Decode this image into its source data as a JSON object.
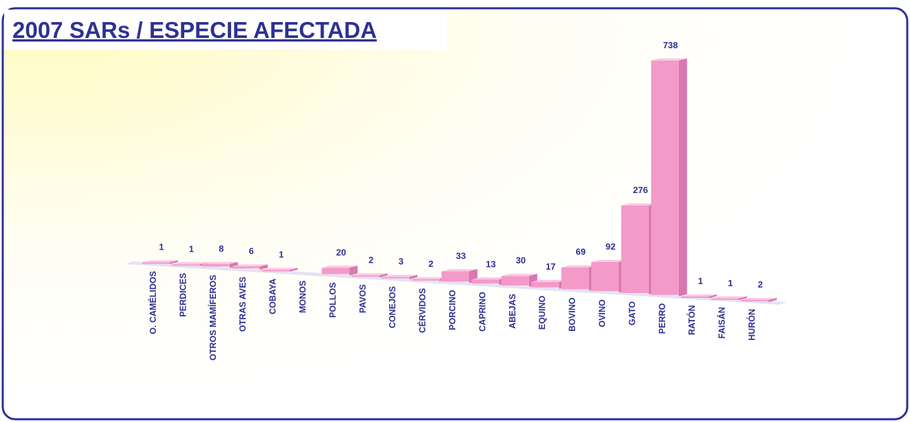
{
  "chart_data": {
    "type": "bar3d",
    "title": "2007 SARs  / ESPECIE AFECTADA",
    "categories": [
      "O. CAMÉLIDOS",
      "PERDICES",
      "OTROS MAMÍFEROS",
      "OTRAS AVES",
      "COBAYA",
      "MONOS",
      "POLLOS",
      "PAVOS",
      "CONEJOS",
      "CÉRVIDOS",
      "PORCINO",
      "CAPRINO",
      "ABEJAS",
      "EQUINO",
      "BOVINO",
      "OVINO",
      "GATO",
      "PERRO",
      "RATÓN",
      "FAISÁN",
      "HURÓN"
    ],
    "values": [
      1,
      1,
      8,
      6,
      1,
      null,
      20,
      2,
      3,
      2,
      33,
      13,
      30,
      17,
      69,
      92,
      276,
      738,
      1,
      1,
      2
    ],
    "color": "#f39ac8"
  }
}
